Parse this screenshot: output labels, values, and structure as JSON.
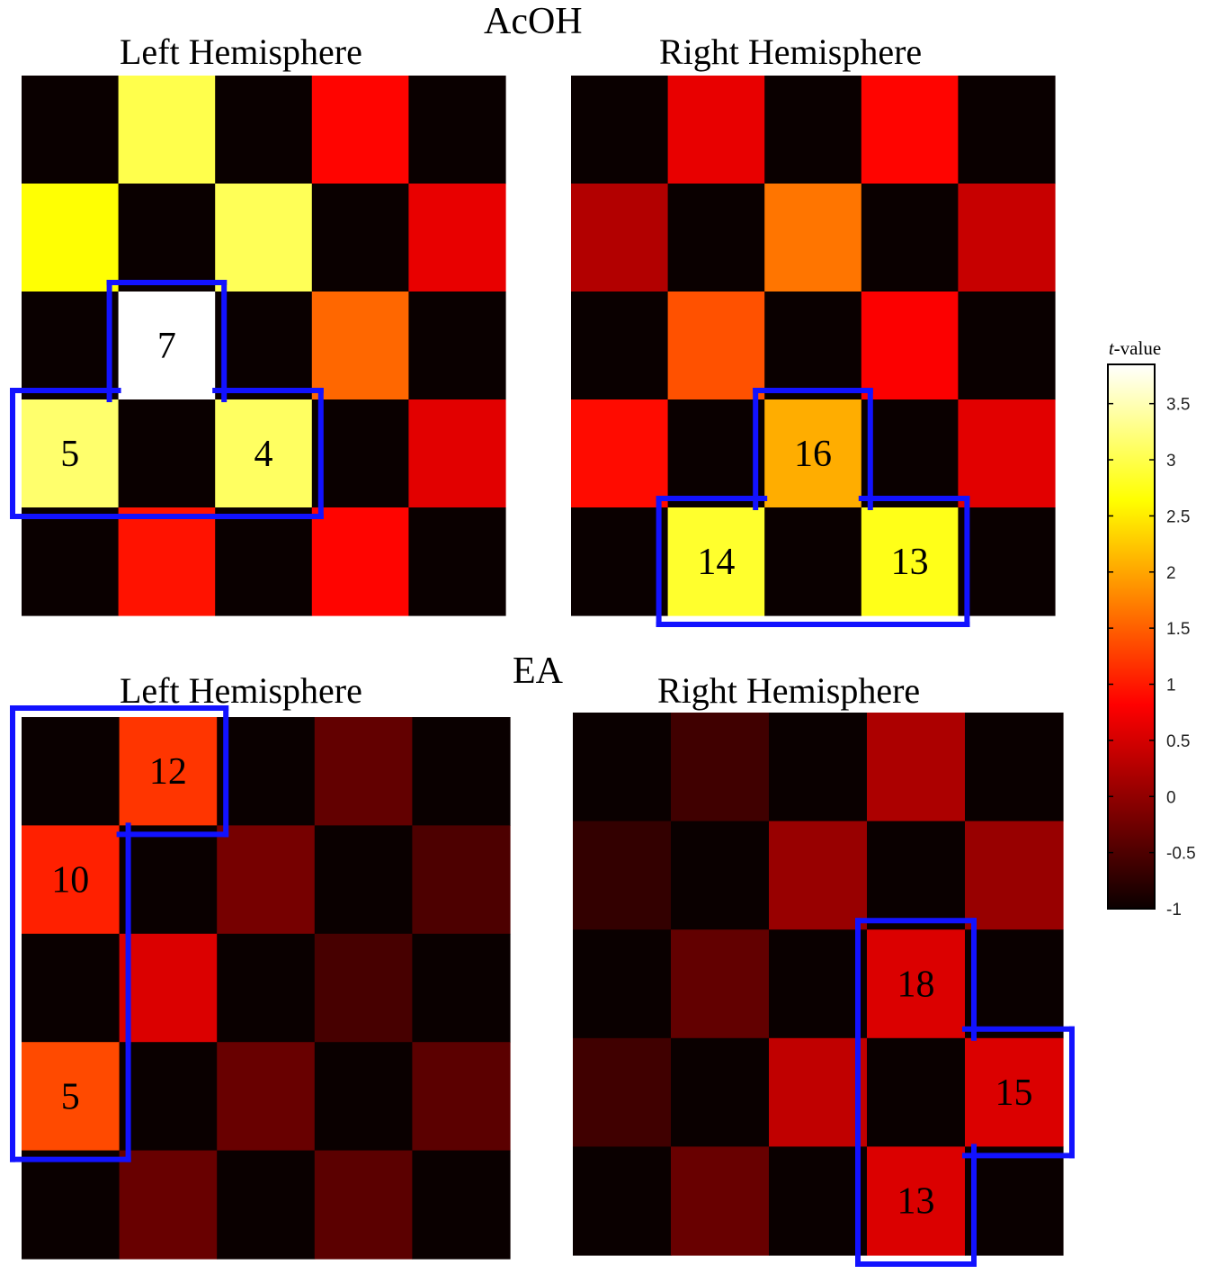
{
  "titles": {
    "top_group": "AcOH",
    "bottom_group": "EA",
    "panels": {
      "acoh_left": "Left Hemisphere",
      "acoh_right": "Right Hemisphere",
      "ea_left": "Left Hemisphere",
      "ea_right": "Right Hemisphere"
    }
  },
  "colorbar": {
    "label_italic": "t",
    "label_rest": "-value",
    "ticks": [
      3.5,
      3,
      2.5,
      2,
      1.5,
      1,
      0.5,
      0,
      -0.5,
      -1
    ],
    "tick_labels": [
      "3.5",
      "3",
      "2.5",
      "2",
      "1.5",
      "1",
      "0.5",
      "0",
      "-0.5",
      "-1"
    ],
    "range": [
      -1,
      3.85
    ],
    "colormap": "hot"
  },
  "chart_data": [
    {
      "type": "heatmap",
      "group": "AcOH",
      "title": "Left Hemisphere",
      "rows": 5,
      "cols": 5,
      "values": [
        [
          -1,
          3.0,
          -1,
          0.85,
          -1
        ],
        [
          2.65,
          -1,
          3.05,
          -1,
          0.65
        ],
        [
          -1,
          3.85,
          -1,
          1.55,
          -1
        ],
        [
          3.15,
          -1,
          3.1,
          -1,
          0.6
        ],
        [
          -1,
          0.95,
          -1,
          0.85,
          -1
        ]
      ],
      "labels": [
        {
          "row": 2,
          "col": 1,
          "text": "7"
        },
        {
          "row": 3,
          "col": 0,
          "text": "5"
        },
        {
          "row": 3,
          "col": 2,
          "text": "4"
        }
      ],
      "outlined_cells": [
        [
          2,
          1
        ],
        [
          3,
          0
        ],
        [
          3,
          1
        ],
        [
          3,
          2
        ]
      ]
    },
    {
      "type": "heatmap",
      "group": "AcOH",
      "title": "Right Hemisphere",
      "rows": 5,
      "cols": 5,
      "values": [
        [
          -1,
          0.65,
          -1,
          0.85,
          -1
        ],
        [
          0.25,
          -1,
          1.65,
          -1,
          0.4
        ],
        [
          -1,
          1.4,
          -1,
          0.8,
          -1
        ],
        [
          0.9,
          -1,
          2.05,
          -1,
          0.6
        ],
        [
          -1,
          2.85,
          -1,
          2.75,
          -1
        ]
      ],
      "labels": [
        {
          "row": 3,
          "col": 2,
          "text": "16"
        },
        {
          "row": 4,
          "col": 1,
          "text": "14"
        },
        {
          "row": 4,
          "col": 3,
          "text": "13"
        }
      ],
      "outlined_cells": [
        [
          3,
          2
        ],
        [
          4,
          1
        ],
        [
          4,
          2
        ],
        [
          4,
          3
        ]
      ]
    },
    {
      "type": "heatmap",
      "group": "EA",
      "title": "Left Hemisphere",
      "rows": 5,
      "cols": 5,
      "values": [
        [
          -1,
          1.2,
          -1,
          -0.35,
          -1
        ],
        [
          1.05,
          -1,
          -0.2,
          -1,
          -0.5
        ],
        [
          -1,
          0.55,
          -1,
          -0.55,
          -1
        ],
        [
          1.35,
          -1,
          -0.3,
          -1,
          -0.4
        ],
        [
          -1,
          -0.3,
          -1,
          -0.4,
          -1
        ]
      ],
      "labels": [
        {
          "row": 0,
          "col": 1,
          "text": "12"
        },
        {
          "row": 1,
          "col": 0,
          "text": "10"
        },
        {
          "row": 3,
          "col": 0,
          "text": "5"
        }
      ],
      "outlined_cells": [
        [
          0,
          0
        ],
        [
          0,
          1
        ],
        [
          1,
          0
        ],
        [
          2,
          0
        ],
        [
          3,
          0
        ]
      ]
    },
    {
      "type": "heatmap",
      "group": "EA",
      "title": "Right Hemisphere",
      "rows": 5,
      "cols": 5,
      "values": [
        [
          -1,
          -0.6,
          -1,
          0.2,
          -1
        ],
        [
          -0.7,
          -1,
          0.05,
          -1,
          0.05
        ],
        [
          -1,
          -0.35,
          -1,
          0.55,
          -1
        ],
        [
          -0.6,
          -1,
          0.35,
          -1,
          0.55
        ],
        [
          -1,
          -0.3,
          -1,
          0.55,
          -1
        ]
      ],
      "labels": [
        {
          "row": 2,
          "col": 3,
          "text": "18"
        },
        {
          "row": 3,
          "col": 4,
          "text": "15"
        },
        {
          "row": 4,
          "col": 3,
          "text": "13"
        }
      ],
      "outlined_cells": [
        [
          2,
          3
        ],
        [
          3,
          3
        ],
        [
          3,
          4
        ],
        [
          4,
          3
        ]
      ]
    }
  ]
}
